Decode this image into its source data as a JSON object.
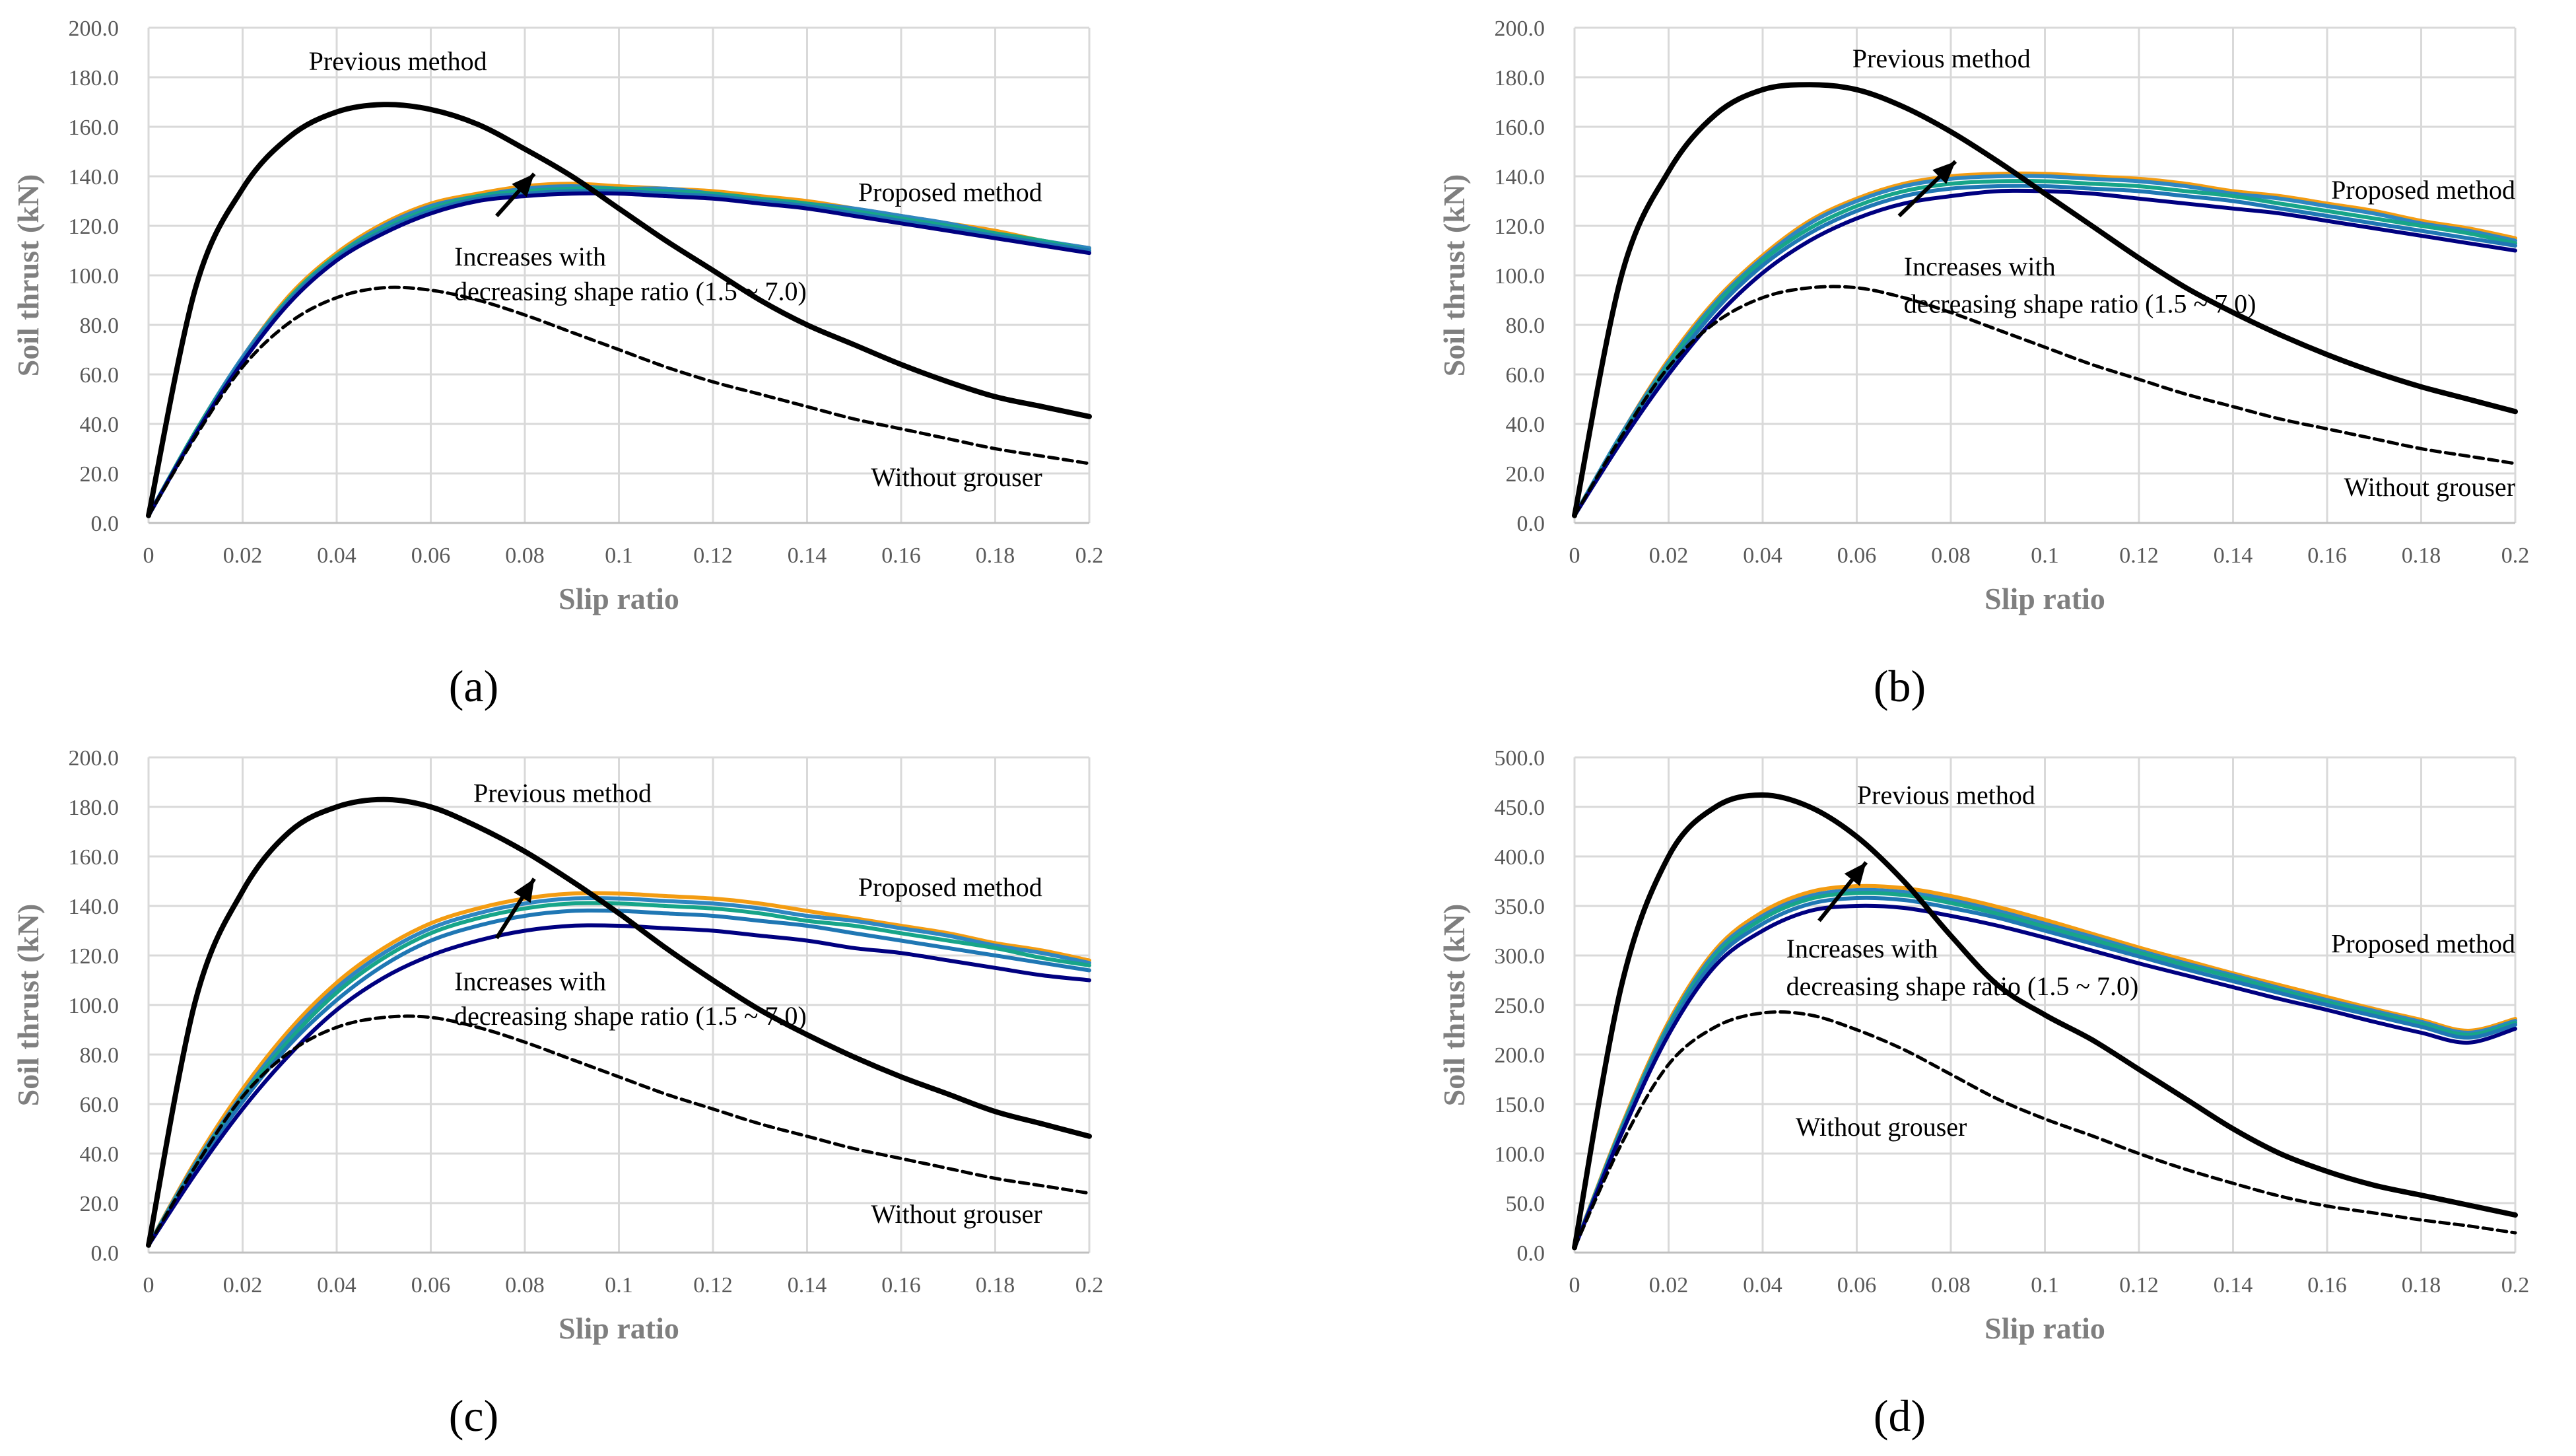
{
  "chart_data": [
    {
      "panel": "(a)",
      "type": "line",
      "xlabel": "Slip ratio",
      "ylabel": "Soil thrust (kN)",
      "xlim": [
        0,
        0.2
      ],
      "ylim": [
        0,
        200
      ],
      "x_ticks": [
        "0",
        "0.02",
        "0.04",
        "0.06",
        "0.08",
        "0.1",
        "0.12",
        "0.14",
        "0.16",
        "0.18",
        "0.2"
      ],
      "y_ticks": [
        "0.0",
        "20.0",
        "40.0",
        "60.0",
        "80.0",
        "100.0",
        "120.0",
        "140.0",
        "160.0",
        "180.0",
        "200.0"
      ],
      "grid": true,
      "x": [
        0,
        0.01,
        0.02,
        0.03,
        0.04,
        0.05,
        0.06,
        0.07,
        0.08,
        0.09,
        0.1,
        0.11,
        0.12,
        0.13,
        0.14,
        0.15,
        0.16,
        0.17,
        0.18,
        0.19,
        0.2
      ],
      "series": [
        {
          "style": "solid-black",
          "values": [
            3,
            95,
            135,
            156,
            166,
            169,
            167,
            161,
            151,
            140,
            127,
            114,
            102,
            90,
            80,
            72,
            64,
            57,
            51,
            47,
            43
          ]
        },
        {
          "style": "dashed-black",
          "values": [
            3,
            35,
            63,
            81,
            91,
            95,
            94,
            90,
            84,
            77,
            70,
            63,
            57,
            52,
            47,
            42,
            38,
            34,
            30,
            27,
            24
          ]
        },
        {
          "style": "proposed-1",
          "color": "#000080",
          "values": [
            3,
            36,
            65,
            89,
            106,
            117,
            125,
            130,
            132,
            133,
            133,
            132,
            131,
            129,
            127,
            124,
            121,
            118,
            115,
            112,
            109
          ]
        },
        {
          "style": "proposed-2",
          "color": "#1f77b4",
          "values": [
            3,
            36,
            66,
            90,
            107,
            118,
            126,
            131,
            133,
            134,
            134,
            133,
            132,
            130,
            128,
            125,
            122,
            119,
            116,
            113,
            110
          ]
        },
        {
          "style": "proposed-3",
          "color": "#17a589",
          "values": [
            3,
            37,
            66,
            91,
            108,
            119,
            127,
            132,
            134,
            135,
            135,
            134,
            133,
            131,
            129,
            126,
            123,
            120,
            117,
            114,
            110
          ]
        },
        {
          "style": "proposed-4",
          "color": "#2e86c1",
          "values": [
            3,
            37,
            67,
            91,
            108,
            120,
            128,
            132,
            135,
            136,
            135,
            135,
            133,
            131,
            129,
            127,
            124,
            121,
            117,
            114,
            111
          ]
        },
        {
          "style": "proposed-5",
          "color": "#f39c12",
          "values": [
            3,
            37,
            67,
            92,
            109,
            121,
            129,
            133,
            136,
            137,
            136,
            135,
            134,
            132,
            130,
            127,
            124,
            121,
            118,
            114,
            111
          ]
        }
      ],
      "annotations": [
        "Previous method",
        "Proposed method",
        "Increases with",
        "decreasing shape ratio (1.5 ~ 7.0)",
        "Without grouser"
      ]
    },
    {
      "panel": "(b)",
      "type": "line",
      "xlabel": "Slip ratio",
      "ylabel": "Soil thrust (kN)",
      "xlim": [
        0,
        0.2
      ],
      "ylim": [
        0,
        200
      ],
      "x_ticks": [
        "0",
        "0.02",
        "0.04",
        "0.06",
        "0.08",
        "0.1",
        "0.12",
        "0.14",
        "0.16",
        "0.18",
        "0.2"
      ],
      "y_ticks": [
        "0.0",
        "20.0",
        "40.0",
        "60.0",
        "80.0",
        "100.0",
        "120.0",
        "140.0",
        "160.0",
        "180.0",
        "200.0"
      ],
      "grid": true,
      "x": [
        0,
        0.01,
        0.02,
        0.03,
        0.04,
        0.05,
        0.06,
        0.07,
        0.08,
        0.09,
        0.1,
        0.11,
        0.12,
        0.13,
        0.14,
        0.15,
        0.16,
        0.17,
        0.18,
        0.19,
        0.2
      ],
      "series": [
        {
          "style": "solid-black",
          "values": [
            3,
            100,
            142,
            165,
            175,
            177,
            175,
            168,
            158,
            146,
            133,
            120,
            107,
            95,
            85,
            76,
            68,
            61,
            55,
            50,
            45
          ]
        },
        {
          "style": "dashed-black",
          "values": [
            3,
            35,
            63,
            81,
            91,
            95,
            95,
            91,
            85,
            78,
            71,
            64,
            58,
            52,
            47,
            42,
            38,
            34,
            30,
            27,
            24
          ]
        },
        {
          "style": "proposed-1",
          "color": "#000080",
          "values": [
            3,
            33,
            60,
            83,
            101,
            114,
            123,
            129,
            132,
            134,
            134,
            133,
            131,
            129,
            127,
            125,
            122,
            119,
            116,
            113,
            110
          ]
        },
        {
          "style": "proposed-2",
          "color": "#1f77b4",
          "values": [
            3,
            34,
            62,
            86,
            104,
            117,
            126,
            132,
            135,
            136,
            136,
            135,
            134,
            132,
            130,
            127,
            124,
            121,
            118,
            115,
            112
          ]
        },
        {
          "style": "proposed-3",
          "color": "#17a589",
          "values": [
            3,
            35,
            64,
            88,
            106,
            119,
            128,
            134,
            137,
            138,
            138,
            137,
            136,
            134,
            132,
            129,
            126,
            123,
            120,
            117,
            113
          ]
        },
        {
          "style": "proposed-4",
          "color": "#2e86c1",
          "values": [
            3,
            36,
            65,
            89,
            107,
            121,
            130,
            136,
            139,
            140,
            140,
            139,
            138,
            136,
            133,
            131,
            128,
            125,
            121,
            118,
            114
          ]
        },
        {
          "style": "proposed-5",
          "color": "#f39c12",
          "values": [
            3,
            36,
            66,
            90,
            108,
            122,
            131,
            137,
            140,
            141,
            141,
            140,
            139,
            137,
            134,
            132,
            129,
            126,
            122,
            119,
            115
          ]
        }
      ],
      "annotations": [
        "Previous method",
        "Proposed method",
        "Increases with",
        "decreasing shape ratio (1.5 ~ 7.0)",
        "Without grouser"
      ]
    },
    {
      "panel": "(c)",
      "type": "line",
      "xlabel": "Slip ratio",
      "ylabel": "Soil thrust (kN)",
      "xlim": [
        0,
        0.2
      ],
      "ylim": [
        0,
        200
      ],
      "x_ticks": [
        "0",
        "0.02",
        "0.04",
        "0.06",
        "0.08",
        "0.1",
        "0.12",
        "0.14",
        "0.16",
        "0.18",
        "0.2"
      ],
      "y_ticks": [
        "0.0",
        "20.0",
        "40.0",
        "60.0",
        "80.0",
        "100.0",
        "120.0",
        "140.0",
        "160.0",
        "180.0",
        "200.0"
      ],
      "grid": true,
      "x": [
        0,
        0.01,
        0.02,
        0.03,
        0.04,
        0.05,
        0.06,
        0.07,
        0.08,
        0.09,
        0.1,
        0.11,
        0.12,
        0.13,
        0.14,
        0.15,
        0.16,
        0.17,
        0.18,
        0.19,
        0.2
      ],
      "series": [
        {
          "style": "solid-black",
          "values": [
            3,
            102,
            146,
            170,
            180,
            183,
            180,
            172,
            162,
            150,
            137,
            123,
            110,
            98,
            88,
            79,
            71,
            64,
            57,
            52,
            47
          ]
        },
        {
          "style": "dashed-black",
          "values": [
            3,
            35,
            63,
            81,
            91,
            95,
            95,
            91,
            85,
            78,
            71,
            64,
            58,
            52,
            47,
            42,
            38,
            34,
            30,
            27,
            24
          ]
        },
        {
          "style": "proposed-1",
          "color": "#000080",
          "values": [
            3,
            32,
            58,
            80,
            98,
            111,
            120,
            126,
            130,
            132,
            132,
            131,
            130,
            128,
            126,
            123,
            121,
            118,
            115,
            112,
            110
          ]
        },
        {
          "style": "proposed-2",
          "color": "#1f77b4",
          "values": [
            3,
            34,
            61,
            84,
            102,
            116,
            126,
            132,
            136,
            138,
            138,
            137,
            136,
            134,
            132,
            129,
            126,
            123,
            120,
            117,
            114
          ]
        },
        {
          "style": "proposed-3",
          "color": "#17a589",
          "values": [
            3,
            35,
            63,
            86,
            105,
            119,
            129,
            135,
            139,
            141,
            141,
            140,
            139,
            137,
            134,
            132,
            129,
            126,
            123,
            119,
            116
          ]
        },
        {
          "style": "proposed-4",
          "color": "#2e86c1",
          "values": [
            3,
            36,
            64,
            88,
            107,
            121,
            131,
            137,
            141,
            143,
            143,
            142,
            141,
            139,
            136,
            134,
            131,
            128,
            124,
            121,
            117
          ]
        },
        {
          "style": "proposed-5",
          "color": "#f39c12",
          "values": [
            3,
            37,
            66,
            90,
            109,
            123,
            133,
            139,
            143,
            145,
            145,
            144,
            143,
            141,
            138,
            135,
            132,
            129,
            125,
            122,
            118
          ]
        }
      ],
      "annotations": [
        "Previous method",
        "Proposed method",
        "Increases with",
        "decreasing shape ratio (1.5 ~ 7.0)",
        "Without grouser"
      ]
    },
    {
      "panel": "(d)",
      "type": "line",
      "xlabel": "Slip ratio",
      "ylabel": "Soil thrust (kN)",
      "xlim": [
        0,
        0.2
      ],
      "ylim": [
        0,
        500
      ],
      "x_ticks": [
        "0",
        "0.02",
        "0.04",
        "0.06",
        "0.08",
        "0.1",
        "0.12",
        "0.14",
        "0.16",
        "0.18",
        "0.2"
      ],
      "y_ticks": [
        "0.0",
        "50.0",
        "100.0",
        "150.0",
        "200.0",
        "250.0",
        "300.0",
        "350.0",
        "400.0",
        "450.0",
        "500.0"
      ],
      "grid": true,
      "x": [
        0,
        0.01,
        0.02,
        0.03,
        0.04,
        0.05,
        0.06,
        0.07,
        0.08,
        0.09,
        0.1,
        0.11,
        0.12,
        0.13,
        0.14,
        0.15,
        0.16,
        0.17,
        0.18,
        0.19,
        0.2
      ],
      "series": [
        {
          "style": "solid-black",
          "values": [
            5,
            270,
            400,
            450,
            462,
            450,
            420,
            375,
            320,
            270,
            240,
            215,
            185,
            155,
            125,
            100,
            82,
            68,
            58,
            48,
            38
          ]
        },
        {
          "style": "dashed-black",
          "values": [
            5,
            110,
            190,
            228,
            242,
            240,
            225,
            205,
            180,
            155,
            135,
            118,
            100,
            84,
            70,
            57,
            47,
            40,
            33,
            27,
            20
          ]
        },
        {
          "style": "proposed-1",
          "color": "#000080",
          "values": [
            5,
            120,
            220,
            290,
            325,
            345,
            350,
            348,
            340,
            330,
            318,
            305,
            292,
            280,
            268,
            256,
            245,
            233,
            222,
            212,
            226
          ]
        },
        {
          "style": "proposed-2",
          "color": "#1f77b4",
          "values": [
            5,
            123,
            225,
            296,
            332,
            352,
            358,
            356,
            348,
            338,
            325,
            312,
            299,
            286,
            274,
            262,
            250,
            239,
            228,
            217,
            230
          ]
        },
        {
          "style": "proposed-3",
          "color": "#17a589",
          "values": [
            5,
            125,
            228,
            300,
            337,
            357,
            363,
            361,
            353,
            342,
            329,
            316,
            303,
            290,
            278,
            265,
            253,
            242,
            231,
            220,
            232
          ]
        },
        {
          "style": "proposed-4",
          "color": "#2e86c1",
          "values": [
            5,
            126,
            230,
            303,
            340,
            360,
            366,
            364,
            356,
            345,
            332,
            319,
            305,
            292,
            280,
            267,
            255,
            244,
            233,
            222,
            234
          ]
        },
        {
          "style": "proposed-5",
          "color": "#f39c12",
          "values": [
            5,
            128,
            233,
            306,
            344,
            364,
            370,
            368,
            360,
            349,
            336,
            322,
            308,
            295,
            282,
            270,
            258,
            246,
            235,
            224,
            236
          ]
        }
      ],
      "annotations": [
        "Previous method",
        "Proposed method",
        "Increases with",
        "decreasing shape ratio (1.5 ~ 7.0)",
        "Without grouser"
      ]
    }
  ]
}
